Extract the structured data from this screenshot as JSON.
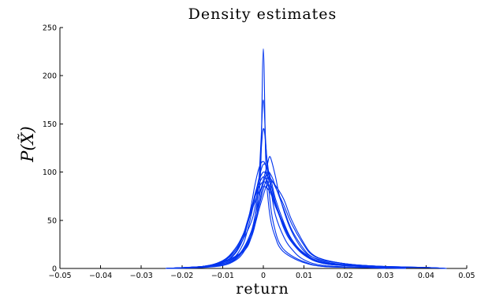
{
  "chart_data": {
    "type": "line",
    "title": "Density estimates",
    "xlabel": "return",
    "ylabel": "P(X̃)",
    "xlim": [
      -0.05,
      0.05
    ],
    "ylim": [
      0,
      250
    ],
    "xticks": [
      -0.05,
      -0.04,
      -0.03,
      -0.02,
      -0.01,
      0,
      0.01,
      0.02,
      0.03,
      0.04,
      0.05
    ],
    "xtick_labels": [
      "−0.05",
      "−0.04",
      "−0.03",
      "−0.02",
      "−0.01",
      "0",
      "0.01",
      "0.02",
      "0.03",
      "0.04",
      "0.05"
    ],
    "yticks": [
      0,
      50,
      100,
      150,
      200,
      250
    ],
    "ytick_labels": [
      "0",
      "50",
      "100",
      "150",
      "200",
      "250"
    ],
    "grid": false,
    "line_color": "#0033ee",
    "series": [
      {
        "x": [
          -0.024,
          -0.015,
          -0.01,
          -0.006,
          -0.004,
          -0.003,
          -0.002,
          -0.0012,
          -0.0006,
          0,
          0.0006,
          0.0012,
          0.002,
          0.003,
          0.004,
          0.006,
          0.01,
          0.015,
          0.025,
          0.03
        ],
        "y": [
          0,
          2,
          6,
          14,
          22,
          32,
          46,
          70,
          110,
          228,
          110,
          70,
          46,
          32,
          22,
          14,
          6,
          2,
          1,
          0
        ]
      },
      {
        "x": [
          -0.024,
          -0.015,
          -0.01,
          -0.006,
          -0.004,
          -0.003,
          -0.002,
          -0.0012,
          -0.0006,
          0,
          0.0006,
          0.0012,
          0.002,
          0.003,
          0.004,
          0.006,
          0.01,
          0.015,
          0.025,
          0.03
        ],
        "y": [
          0,
          2,
          7,
          15,
          25,
          36,
          55,
          85,
          130,
          175,
          130,
          90,
          58,
          38,
          26,
          16,
          7,
          2,
          1,
          0
        ]
      },
      {
        "x": [
          -0.024,
          -0.015,
          -0.01,
          -0.007,
          -0.005,
          -0.003,
          -0.002,
          -0.001,
          0,
          0.001,
          0.002,
          0.003,
          0.005,
          0.007,
          0.01,
          0.015,
          0.025,
          0.035
        ],
        "y": [
          0,
          2,
          8,
          18,
          30,
          48,
          65,
          95,
          145,
          110,
          78,
          55,
          33,
          20,
          9,
          3,
          1,
          0
        ]
      },
      {
        "x": [
          -0.024,
          -0.015,
          -0.01,
          -0.007,
          -0.005,
          -0.004,
          -0.003,
          -0.002,
          -0.001,
          0,
          0.001,
          0.002,
          0.003,
          0.005,
          0.007,
          0.01,
          0.013,
          0.018,
          0.025,
          0.035
        ],
        "y": [
          0,
          2,
          6,
          15,
          30,
          45,
          65,
          88,
          105,
          111,
          102,
          85,
          68,
          42,
          27,
          14,
          8,
          4,
          2,
          0
        ]
      },
      {
        "x": [
          -0.024,
          -0.015,
          -0.01,
          -0.007,
          -0.005,
          -0.004,
          -0.003,
          -0.002,
          -0.001,
          0,
          0.001,
          0.002,
          0.003,
          0.005,
          0.007,
          0.01,
          0.015,
          0.025,
          0.035
        ],
        "y": [
          0,
          2,
          5,
          12,
          25,
          38,
          55,
          75,
          95,
          108,
          104,
          90,
          72,
          48,
          30,
          16,
          6,
          2,
          0
        ]
      },
      {
        "x": [
          -0.024,
          -0.015,
          -0.01,
          -0.007,
          -0.005,
          -0.004,
          -0.003,
          -0.002,
          -0.001,
          0,
          0.001,
          0.002,
          0.003,
          0.005,
          0.007,
          0.01,
          0.015,
          0.025,
          0.035
        ],
        "y": [
          0,
          2,
          6,
          16,
          30,
          44,
          60,
          78,
          92,
          100,
          96,
          85,
          68,
          45,
          28,
          15,
          5,
          2,
          0
        ]
      },
      {
        "x": [
          -0.024,
          -0.015,
          -0.01,
          -0.007,
          -0.005,
          -0.004,
          -0.003,
          -0.002,
          -0.001,
          0,
          0.001,
          0.002,
          0.003,
          0.005,
          0.007,
          0.01,
          0.015,
          0.025,
          0.035
        ],
        "y": [
          0,
          2,
          7,
          18,
          33,
          46,
          60,
          75,
          88,
          95,
          90,
          80,
          65,
          44,
          28,
          14,
          5,
          2,
          0
        ]
      },
      {
        "x": [
          -0.024,
          -0.015,
          -0.01,
          -0.007,
          -0.005,
          -0.004,
          -0.003,
          -0.002,
          -0.001,
          0,
          0.001,
          0.002,
          0.003,
          0.005,
          0.007,
          0.01,
          0.015,
          0.025,
          0.035
        ],
        "y": [
          0,
          2,
          8,
          20,
          35,
          48,
          62,
          75,
          85,
          90,
          87,
          78,
          65,
          46,
          30,
          15,
          5,
          2,
          0
        ]
      },
      {
        "x": [
          -0.024,
          -0.015,
          -0.01,
          -0.007,
          -0.005,
          -0.004,
          -0.003,
          -0.002,
          -0.001,
          0,
          0.001,
          0.002,
          0.003,
          0.005,
          0.007,
          0.01,
          0.015,
          0.025,
          0.035
        ],
        "y": [
          0,
          2,
          8,
          20,
          34,
          46,
          58,
          70,
          80,
          85,
          83,
          76,
          64,
          46,
          30,
          16,
          6,
          2,
          0
        ]
      },
      {
        "x": [
          -0.024,
          -0.015,
          -0.01,
          -0.007,
          -0.005,
          -0.003,
          -0.002,
          -0.001,
          0,
          0.001,
          0.0015,
          0.002,
          0.003,
          0.004,
          0.006,
          0.008,
          0.01,
          0.012,
          0.015,
          0.02,
          0.025,
          0.03,
          0.035,
          0.04,
          0.045
        ],
        "y": [
          0,
          1,
          4,
          10,
          20,
          38,
          55,
          75,
          92,
          108,
          116,
          112,
          95,
          75,
          48,
          30,
          18,
          12,
          8,
          5,
          3,
          2,
          1,
          1,
          0
        ]
      },
      {
        "x": [
          -0.024,
          -0.015,
          -0.01,
          -0.007,
          -0.005,
          -0.003,
          -0.002,
          -0.001,
          0,
          0.001,
          0.002,
          0.003,
          0.005,
          0.007,
          0.01,
          0.012,
          0.015,
          0.02,
          0.025,
          0.03,
          0.04,
          0.045
        ],
        "y": [
          0,
          1,
          3,
          8,
          16,
          32,
          48,
          68,
          88,
          100,
          96,
          85,
          62,
          40,
          20,
          12,
          7,
          4,
          3,
          2,
          1,
          0
        ]
      },
      {
        "x": [
          -0.024,
          -0.015,
          -0.01,
          -0.007,
          -0.005,
          -0.003,
          -0.002,
          -0.001,
          0,
          0.001,
          0.002,
          0.003,
          0.005,
          0.007,
          0.01,
          0.012,
          0.015,
          0.02,
          0.025,
          0.03,
          0.04,
          0.045
        ],
        "y": [
          0,
          2,
          5,
          11,
          20,
          35,
          50,
          66,
          82,
          94,
          92,
          84,
          66,
          46,
          24,
          14,
          9,
          5,
          3,
          2,
          1,
          0
        ]
      },
      {
        "x": [
          -0.024,
          -0.015,
          -0.01,
          -0.007,
          -0.005,
          -0.003,
          -0.002,
          -0.001,
          0,
          0.001,
          0.002,
          0.003,
          0.005,
          0.007,
          0.01,
          0.012,
          0.015,
          0.02,
          0.025,
          0.03,
          0.04,
          0.045
        ],
        "y": [
          0,
          2,
          4,
          9,
          18,
          32,
          46,
          62,
          76,
          88,
          90,
          86,
          72,
          50,
          26,
          15,
          9,
          5,
          3,
          2,
          1,
          0
        ]
      }
    ]
  }
}
